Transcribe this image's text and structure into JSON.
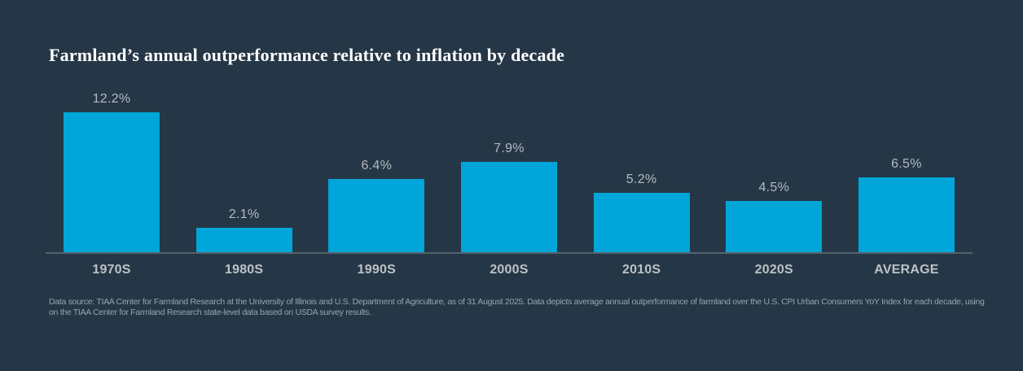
{
  "colors": {
    "background": "#253746",
    "bar": "#00a6d9",
    "title": "#ffffff",
    "value_label": "#b3bac0",
    "category_label": "#bcc1c5",
    "axis_line": "#56626d",
    "footnote": "#98a4af"
  },
  "chart_data": {
    "type": "bar",
    "title": "Farmland’s annual outperformance relative to inflation by decade",
    "categories": [
      "1970S",
      "1980S",
      "1990S",
      "2000S",
      "2010S",
      "2020S",
      "AVERAGE"
    ],
    "values": [
      12.2,
      2.1,
      6.4,
      7.9,
      5.2,
      4.5,
      6.5
    ],
    "value_labels": [
      "12.2%",
      "2.1%",
      "6.4%",
      "7.9%",
      "5.2%",
      "4.5%",
      "6.5%"
    ],
    "xlabel": "",
    "ylabel": "",
    "grid": false,
    "legend_position": "none",
    "value_label_position": "above-bar"
  },
  "footnote": {
    "line1": "Data source: TIAA Center for Farmland Research at the University of Illinois and U.S. Department of Agriculture, as of 31 August 2025. Data depicts average annual outperformance of farmland over the U.S. CPI Urban Consumers YoY Index for each decade, using",
    "line2": "on the TIAA Center for Farmland Research state-level data based on USDA survey results."
  }
}
